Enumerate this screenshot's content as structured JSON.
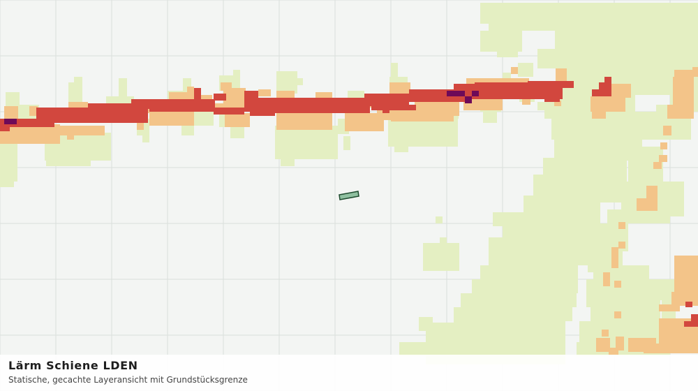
{
  "map": {
    "layer_title": "Lärm Schiene LDEN",
    "layer_subtitle": "Statische, gecachte Layeransicht mit Grundstücksgrenze",
    "colors": {
      "background": "#f3f5f3",
      "grid": "#d9dedb",
      "noise_low": "#e4efc2",
      "noise_mid": "#f3c489",
      "noise_high": "#d2473e",
      "noise_very_high": "#6e0a58",
      "parcel_fill": "#8fc0a0",
      "parcel_stroke": "#1e4b2e"
    },
    "noise_classes": [
      "noise_low",
      "noise_mid",
      "noise_high",
      "noise_very_high"
    ]
  }
}
